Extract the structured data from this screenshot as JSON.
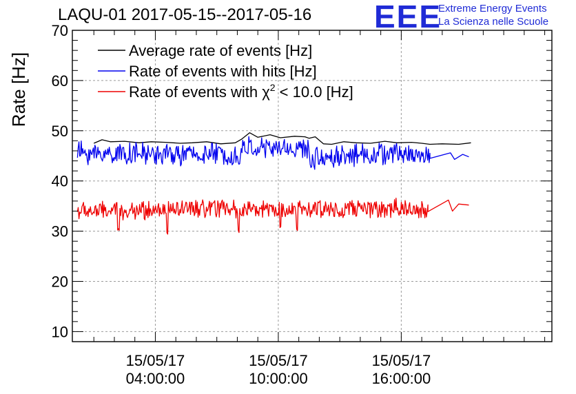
{
  "header": {
    "title": "LAQU-01 2017-05-15--2017-05-16",
    "logo_text": "EEE",
    "logo_line1": "Extreme Energy Events",
    "logo_line2": "La Scienza nelle Scuole"
  },
  "colors": {
    "average": "#000000",
    "hits": "#0000ee",
    "chi2": "#ee0000",
    "grid": "#9a9a9a",
    "logo": "#1f2bd6"
  },
  "chart_data": {
    "type": "line",
    "title": "LAQU-01 2017-05-15--2017-05-16",
    "ylabel": "Rate [Hz]",
    "xlabel": "",
    "ylim": [
      8,
      70
    ],
    "xlim_hours": [
      -0.05,
      23.35
    ],
    "yticks": [
      10,
      20,
      30,
      40,
      50,
      60,
      70
    ],
    "xticks": [
      {
        "hour": 4,
        "date": "15/05/17",
        "time": "04:00:00"
      },
      {
        "hour": 10,
        "date": "15/05/17",
        "time": "10:00:00"
      },
      {
        "hour": 16,
        "date": "15/05/17",
        "time": "16:00:00"
      }
    ],
    "grid": true,
    "legend_position": "top-left",
    "series": [
      {
        "name": "Average rate of events [Hz]",
        "legend_main": "Average rate of events [Hz]",
        "color": "#000000",
        "kind": "smooth",
        "x": [
          1.0,
          1.4,
          1.8,
          2.5,
          3.2,
          3.8,
          4.5,
          5.2,
          5.8,
          6.5,
          7.2,
          7.9,
          8.2,
          8.6,
          9.0,
          9.6,
          10.1,
          10.8,
          11.3,
          11.5,
          11.8,
          12.2,
          12.6,
          13.2,
          13.8,
          14.5,
          15.2,
          15.8,
          16.5,
          17.0,
          17.4,
          18.0,
          18.8,
          19.4
        ],
        "y": [
          47.5,
          48.2,
          47.8,
          47.9,
          47.6,
          47.8,
          47.7,
          47.5,
          47.6,
          47.8,
          47.4,
          47.6,
          48.3,
          49.6,
          48.7,
          49.2,
          48.6,
          48.9,
          48.8,
          48.5,
          48.8,
          47.4,
          47.3,
          47.8,
          47.6,
          47.5,
          47.9,
          47.6,
          47.7,
          47.5,
          47.3,
          47.4,
          47.3,
          47.6
        ]
      },
      {
        "name": "Rate of events with hits [Hz]",
        "legend_main": "Rate of events with hits [Hz]",
        "color": "#0000ee",
        "kind": "noisy",
        "anchors_x": [
          0.2,
          1.0,
          2.5,
          4.0,
          5.5,
          7.0,
          8.1,
          8.3,
          9.5,
          10.5,
          11.4,
          11.6,
          12.5,
          14.0,
          15.5,
          16.5,
          17.5,
          18.1,
          19.3
        ],
        "anchors_y": [
          45.8,
          45.4,
          45.5,
          45.3,
          45.2,
          45.4,
          44.9,
          46.8,
          46.4,
          46.5,
          46.3,
          44.4,
          44.9,
          45.3,
          45.4,
          45.3,
          45.0,
          44.7,
          44.7
        ],
        "spread": 1.9,
        "dips": [
          {
            "x": 8.1,
            "y": 42.8
          },
          {
            "x": 11.6,
            "y": 42.5
          }
        ],
        "noise_end": 17.4,
        "tail_x": [
          17.4,
          18.4,
          18.6,
          19.0,
          19.3
        ],
        "tail_y": [
          44.5,
          45.6,
          44.3,
          45.3,
          44.8
        ]
      },
      {
        "name": "Rate of events with χ² < 10.0 [Hz]",
        "legend_main": "Rate of events with χ",
        "legend_sup": "2",
        "legend_tail": " < 10.0 [Hz]",
        "color": "#ee0000",
        "kind": "noisy",
        "anchors_x": [
          0.2,
          2.0,
          4.0,
          6.0,
          8.0,
          10.0,
          12.0,
          14.0,
          16.0,
          17.3,
          17.8
        ],
        "anchors_y": [
          34.0,
          34.0,
          34.2,
          34.3,
          34.4,
          34.3,
          34.4,
          34.5,
          34.5,
          34.3,
          33.9
        ],
        "spread": 1.6,
        "dips": [
          {
            "x": 2.2,
            "y": 30.0
          },
          {
            "x": 4.6,
            "y": 29.0
          },
          {
            "x": 8.05,
            "y": 29.5
          },
          {
            "x": 10.1,
            "y": 30.5
          },
          {
            "x": 10.9,
            "y": 29.5
          }
        ],
        "noise_end": 17.3,
        "tail_x": [
          17.3,
          18.3,
          18.5,
          18.8,
          19.3
        ],
        "tail_y": [
          33.9,
          36.2,
          34.0,
          35.4,
          35.2
        ]
      }
    ]
  }
}
